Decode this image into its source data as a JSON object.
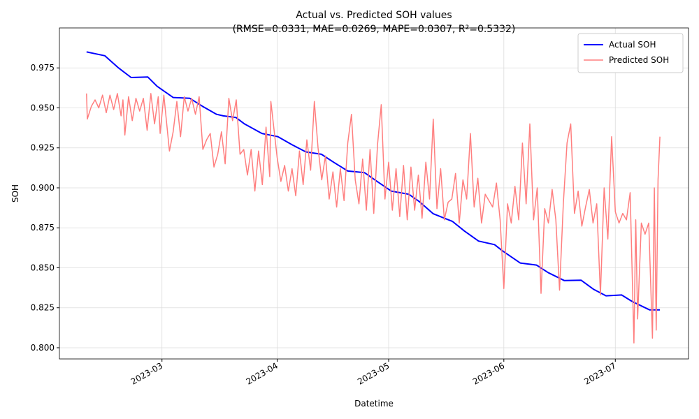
{
  "chart_data": {
    "type": "line",
    "title": "Actual vs. Predicted SOH values",
    "subtitle": "(RMSE=0.0331, MAE=0.0269, MAPE=0.0307, R²=0.5332)",
    "x_label": "Datetime",
    "y_label": "SOH",
    "xlim": [
      31.4,
      200.7
    ],
    "ylim": [
      0.793,
      1.0
    ],
    "xticks": [
      {
        "value": 59,
        "label": "2023-03"
      },
      {
        "value": 90,
        "label": "2023-04"
      },
      {
        "value": 120,
        "label": "2023-05"
      },
      {
        "value": 151,
        "label": "2023-06"
      },
      {
        "value": 181,
        "label": "2023-07"
      }
    ],
    "yticks": [
      {
        "value": 0.8,
        "label": "0.800"
      },
      {
        "value": 0.825,
        "label": "0.825"
      },
      {
        "value": 0.85,
        "label": "0.850"
      },
      {
        "value": 0.875,
        "label": "0.875"
      },
      {
        "value": 0.9,
        "label": "0.900"
      },
      {
        "value": 0.925,
        "label": "0.925"
      },
      {
        "value": 0.95,
        "label": "0.950"
      },
      {
        "value": 0.975,
        "label": "0.975"
      }
    ],
    "grid": true,
    "legend": "upper right",
    "series": [
      {
        "name": "Actual SOH",
        "color": "#0000ff",
        "width": 2,
        "x": [
          38.7,
          43.6,
          47.3,
          50.7,
          55.2,
          57.7,
          62,
          66.5,
          69.9,
          73.7,
          75.5,
          78.9,
          81.2,
          85.9,
          90.2,
          94,
          97.7,
          101.9,
          105.2,
          109,
          113.5,
          116.9,
          120.7,
          125.4,
          128.2,
          132,
          137.2,
          140.4,
          144.2,
          148.5,
          150.7,
          155.4,
          159.8,
          162.9,
          167.3,
          171.8,
          175.2,
          178.5,
          182.7,
          185.5,
          190.2,
          193
        ],
        "values": [
          0.985,
          0.9826,
          0.975,
          0.969,
          0.9693,
          0.9635,
          0.9565,
          0.956,
          0.951,
          0.946,
          0.945,
          0.944,
          0.94,
          0.934,
          0.932,
          0.927,
          0.9225,
          0.921,
          0.916,
          0.9105,
          0.9095,
          0.904,
          0.898,
          0.896,
          0.8915,
          0.8838,
          0.879,
          0.873,
          0.8667,
          0.8645,
          0.8605,
          0.853,
          0.8517,
          0.847,
          0.842,
          0.8422,
          0.8365,
          0.8325,
          0.833,
          0.829,
          0.8237,
          0.8237
        ]
      },
      {
        "name": "Predicted SOH",
        "color": "#ff7f7f",
        "width": 1.5,
        "x": [
          38.7,
          38.9,
          40,
          41,
          42,
          43,
          44,
          45,
          46,
          47,
          48,
          48.5,
          49,
          50,
          51,
          52,
          53,
          54,
          55,
          56,
          57,
          58,
          58.5,
          59.5,
          61,
          62,
          63,
          64,
          65,
          66,
          67,
          68,
          69,
          70,
          71,
          72,
          73,
          74,
          75,
          76,
          77,
          78,
          79,
          80,
          81,
          82,
          83,
          84,
          85,
          86,
          87,
          88,
          88.3,
          90,
          91,
          92,
          93,
          94,
          95,
          96,
          97,
          98,
          99,
          100,
          101,
          102,
          103,
          104,
          105,
          106,
          107,
          108,
          109,
          110,
          111,
          112,
          113,
          114,
          115,
          116,
          117,
          118,
          119,
          120,
          121,
          122,
          123,
          124,
          125,
          126,
          127,
          128,
          129,
          130,
          131,
          132,
          133,
          134,
          135,
          136,
          137,
          138,
          139,
          140,
          141,
          142,
          143,
          144,
          145,
          146,
          148,
          149,
          150,
          151,
          152,
          153,
          154,
          155,
          156,
          157,
          158,
          159,
          160,
          161,
          162,
          163,
          164,
          165,
          166,
          167,
          168,
          169,
          170,
          171,
          172,
          173,
          174,
          175,
          176,
          177,
          178,
          179,
          180,
          181,
          182,
          183,
          184,
          185,
          186,
          186.5,
          187,
          188,
          189,
          190,
          191,
          191.5,
          192,
          192.5,
          193
        ],
        "values": [
          0.959,
          0.943,
          0.951,
          0.955,
          0.95,
          0.958,
          0.947,
          0.958,
          0.949,
          0.959,
          0.945,
          0.955,
          0.933,
          0.957,
          0.942,
          0.956,
          0.948,
          0.956,
          0.936,
          0.959,
          0.94,
          0.957,
          0.934,
          0.958,
          0.923,
          0.935,
          0.954,
          0.932,
          0.957,
          0.948,
          0.956,
          0.946,
          0.957,
          0.924,
          0.93,
          0.934,
          0.913,
          0.921,
          0.935,
          0.915,
          0.956,
          0.942,
          0.955,
          0.921,
          0.924,
          0.908,
          0.924,
          0.898,
          0.923,
          0.902,
          0.938,
          0.907,
          0.954,
          0.919,
          0.904,
          0.914,
          0.898,
          0.912,
          0.895,
          0.923,
          0.902,
          0.93,
          0.911,
          0.954,
          0.925,
          0.905,
          0.92,
          0.893,
          0.91,
          0.888,
          0.912,
          0.892,
          0.928,
          0.946,
          0.905,
          0.89,
          0.918,
          0.886,
          0.924,
          0.884,
          0.927,
          0.952,
          0.893,
          0.916,
          0.886,
          0.912,
          0.882,
          0.914,
          0.88,
          0.913,
          0.886,
          0.908,
          0.881,
          0.916,
          0.893,
          0.943,
          0.887,
          0.912,
          0.88,
          0.891,
          0.893,
          0.909,
          0.878,
          0.905,
          0.893,
          0.934,
          0.888,
          0.906,
          0.878,
          0.896,
          0.888,
          0.903,
          0.88,
          0.837,
          0.89,
          0.878,
          0.901,
          0.88,
          0.928,
          0.89,
          0.94,
          0.88,
          0.9,
          0.834,
          0.887,
          0.878,
          0.899,
          0.88,
          0.836,
          0.89,
          0.928,
          0.94,
          0.884,
          0.898,
          0.876,
          0.888,
          0.899,
          0.878,
          0.89,
          0.833,
          0.9,
          0.868,
          0.932,
          0.885,
          0.878,
          0.884,
          0.88,
          0.897,
          0.803,
          0.88,
          0.818,
          0.878,
          0.871,
          0.878,
          0.806,
          0.9,
          0.811,
          0.905,
          0.932
        ]
      }
    ]
  }
}
